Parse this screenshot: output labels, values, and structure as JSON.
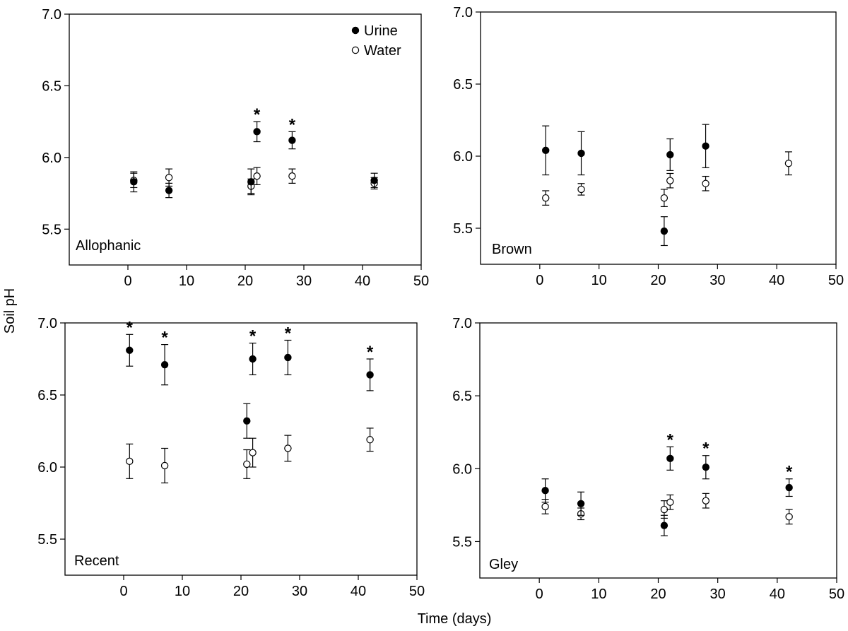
{
  "figure": {
    "ylabel": "Soil pH",
    "xlabel": "Time (days)",
    "legend": {
      "position": "top-right",
      "items": [
        {
          "name": "Urine",
          "marker": "filled-circle"
        },
        {
          "name": "Water",
          "marker": "open-circle"
        }
      ]
    },
    "colors": {
      "urine_fill": "#000000",
      "water_fill": "#ffffff",
      "stroke": "#000000"
    }
  },
  "chart_data": [
    {
      "type": "scatter",
      "panel_label": "Allophanic",
      "xlim": [
        -10,
        50
      ],
      "ylim": [
        5.25,
        7.0
      ],
      "xticks": [
        0,
        10,
        20,
        30,
        40,
        50
      ],
      "yticks": [
        5.5,
        6.0,
        6.5,
        7.0
      ],
      "grid": false,
      "legend": true,
      "series": [
        {
          "name": "Urine",
          "points": [
            {
              "x": 1,
              "y": 5.83,
              "err": 0.07
            },
            {
              "x": 7,
              "y": 5.77,
              "err": 0.05
            },
            {
              "x": 21,
              "y": 5.83,
              "err": 0.09
            },
            {
              "x": 22,
              "y": 6.18,
              "err": 0.07,
              "sig": "*"
            },
            {
              "x": 28,
              "y": 6.12,
              "err": 0.06,
              "sig": "*"
            },
            {
              "x": 42,
              "y": 5.84,
              "err": 0.05
            }
          ]
        },
        {
          "name": "Water",
          "points": [
            {
              "x": 1,
              "y": 5.84,
              "err": 0.05
            },
            {
              "x": 7,
              "y": 5.86,
              "err": 0.06
            },
            {
              "x": 21,
              "y": 5.8,
              "err": 0.05
            },
            {
              "x": 22,
              "y": 5.87,
              "err": 0.06
            },
            {
              "x": 28,
              "y": 5.87,
              "err": 0.05
            },
            {
              "x": 42,
              "y": 5.82,
              "err": 0.04
            }
          ]
        }
      ]
    },
    {
      "type": "scatter",
      "panel_label": "Brown",
      "xlim": [
        -10,
        50
      ],
      "ylim": [
        5.25,
        7.0
      ],
      "xticks": [
        0,
        10,
        20,
        30,
        40,
        50
      ],
      "yticks": [
        5.5,
        6.0,
        6.5,
        7.0
      ],
      "grid": false,
      "legend": false,
      "series": [
        {
          "name": "Urine",
          "points": [
            {
              "x": 1,
              "y": 6.04,
              "err": 0.17
            },
            {
              "x": 7,
              "y": 6.02,
              "err": 0.15
            },
            {
              "x": 21,
              "y": 5.48,
              "err": 0.1
            },
            {
              "x": 22,
              "y": 6.01,
              "err": 0.11
            },
            {
              "x": 28,
              "y": 6.07,
              "err": 0.15
            }
          ]
        },
        {
          "name": "Water",
          "points": [
            {
              "x": 1,
              "y": 5.71,
              "err": 0.05
            },
            {
              "x": 7,
              "y": 5.77,
              "err": 0.04
            },
            {
              "x": 21,
              "y": 5.71,
              "err": 0.06
            },
            {
              "x": 22,
              "y": 5.83,
              "err": 0.05
            },
            {
              "x": 28,
              "y": 5.81,
              "err": 0.05
            },
            {
              "x": 42,
              "y": 5.95,
              "err": 0.08
            }
          ]
        }
      ]
    },
    {
      "type": "scatter",
      "panel_label": "Recent",
      "xlim": [
        -10,
        50
      ],
      "ylim": [
        5.25,
        7.0
      ],
      "xticks": [
        0,
        10,
        20,
        30,
        40,
        50
      ],
      "yticks": [
        5.5,
        6.0,
        6.5,
        7.0
      ],
      "grid": false,
      "legend": false,
      "series": [
        {
          "name": "Urine",
          "points": [
            {
              "x": 1,
              "y": 6.81,
              "err": 0.11,
              "sig": "*"
            },
            {
              "x": 7,
              "y": 6.71,
              "err": 0.14,
              "sig": "*"
            },
            {
              "x": 21,
              "y": 6.32,
              "err": 0.12
            },
            {
              "x": 22,
              "y": 6.75,
              "err": 0.11,
              "sig": "*"
            },
            {
              "x": 28,
              "y": 6.76,
              "err": 0.12,
              "sig": "*"
            },
            {
              "x": 42,
              "y": 6.64,
              "err": 0.11,
              "sig": "*"
            }
          ]
        },
        {
          "name": "Water",
          "points": [
            {
              "x": 1,
              "y": 6.04,
              "err": 0.12
            },
            {
              "x": 7,
              "y": 6.01,
              "err": 0.12
            },
            {
              "x": 21,
              "y": 6.02,
              "err": 0.1
            },
            {
              "x": 22,
              "y": 6.1,
              "err": 0.1
            },
            {
              "x": 28,
              "y": 6.13,
              "err": 0.09
            },
            {
              "x": 42,
              "y": 6.19,
              "err": 0.08
            }
          ]
        }
      ]
    },
    {
      "type": "scatter",
      "panel_label": "Gley",
      "xlim": [
        -10,
        50
      ],
      "ylim": [
        5.25,
        7.0
      ],
      "xticks": [
        0,
        10,
        20,
        30,
        40,
        50
      ],
      "yticks": [
        5.5,
        6.0,
        6.5,
        7.0
      ],
      "grid": false,
      "legend": false,
      "series": [
        {
          "name": "Urine",
          "points": [
            {
              "x": 1,
              "y": 5.85,
              "err": 0.08
            },
            {
              "x": 7,
              "y": 5.76,
              "err": 0.08
            },
            {
              "x": 21,
              "y": 5.61,
              "err": 0.07
            },
            {
              "x": 22,
              "y": 6.07,
              "err": 0.08,
              "sig": "*"
            },
            {
              "x": 28,
              "y": 6.01,
              "err": 0.08,
              "sig": "*"
            },
            {
              "x": 42,
              "y": 5.87,
              "err": 0.06,
              "sig": "*"
            }
          ]
        },
        {
          "name": "Water",
          "points": [
            {
              "x": 1,
              "y": 5.74,
              "err": 0.05
            },
            {
              "x": 7,
              "y": 5.69,
              "err": 0.04
            },
            {
              "x": 21,
              "y": 5.72,
              "err": 0.06
            },
            {
              "x": 22,
              "y": 5.77,
              "err": 0.05
            },
            {
              "x": 28,
              "y": 5.78,
              "err": 0.05
            },
            {
              "x": 42,
              "y": 5.67,
              "err": 0.05
            }
          ]
        }
      ]
    }
  ]
}
